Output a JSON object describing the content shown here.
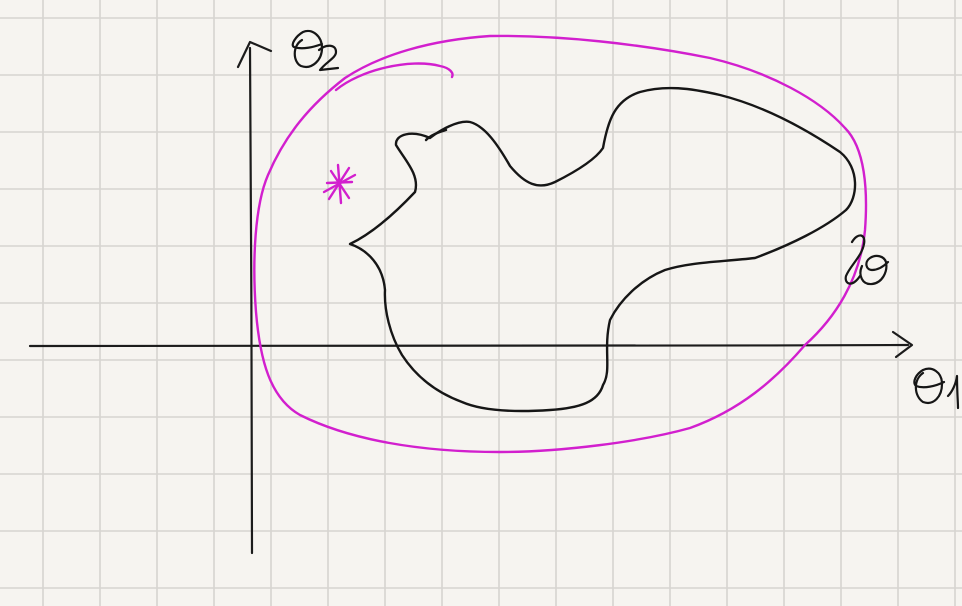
{
  "colors": {
    "paper": "#f6f4f0",
    "grid": "#d6d4d0",
    "ink": "#161616",
    "accent": "#d21fce"
  },
  "labels": {
    "theta1": "θ1",
    "theta2": "θ2",
    "region": "lθ"
  },
  "marks": {
    "optimum_star": "asterisk"
  }
}
